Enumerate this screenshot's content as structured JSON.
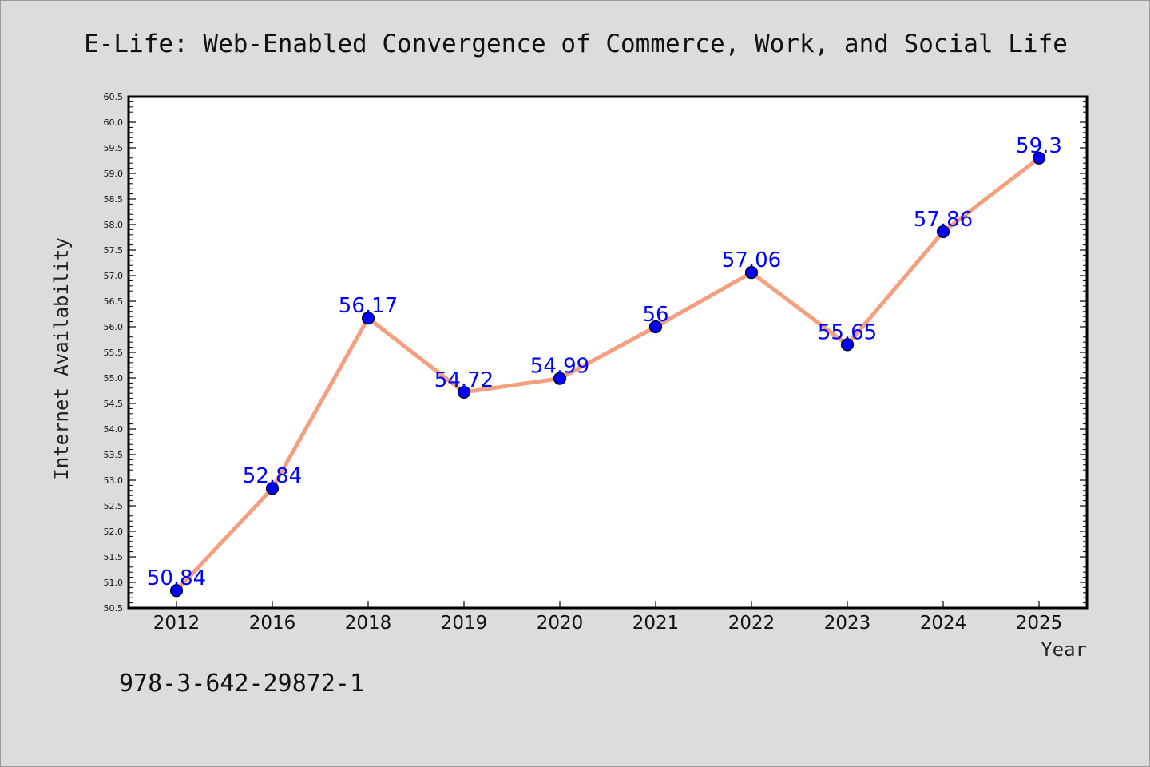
{
  "chart_data": {
    "type": "line",
    "title": "E-Life: Web-Enabled Convergence of Commerce, Work, and Social Life",
    "xlabel": "Year",
    "ylabel": "Internet Availability",
    "categories": [
      "2012",
      "2016",
      "2018",
      "2019",
      "2020",
      "2021",
      "2022",
      "2023",
      "2024",
      "2025"
    ],
    "series": [
      {
        "values": [
          50.84,
          52.84,
          56.17,
          54.72,
          54.99,
          56,
          57.06,
          55.65,
          57.86,
          59.3
        ],
        "data_labels": [
          "50.84",
          "52.84",
          "56.17",
          "54.72",
          "54.99",
          "56",
          "57.06",
          "55.65",
          "57.86",
          "59.3"
        ],
        "line_color": "#f4a07f",
        "marker_color": "#0000ff"
      }
    ],
    "ylim": [
      50.5,
      60.5
    ],
    "yticks": [
      "50.5",
      "51.0",
      "51.5",
      "52.0",
      "52.5",
      "53.0",
      "53.5",
      "54.0",
      "54.5",
      "55.0",
      "55.5",
      "56.0",
      "56.5",
      "57.0",
      "57.5",
      "58.0",
      "58.5",
      "59.0",
      "59.5",
      "60.0",
      "60.5"
    ],
    "grid": false,
    "legend": "none"
  },
  "footer": {
    "isbn": "978-3-642-29872-1"
  },
  "colors": {
    "background": "#dcdcdc",
    "plot_area": "#ffffff",
    "line": "#f4a07f",
    "marker": "#0000ff",
    "data_label": "#0000ff"
  }
}
